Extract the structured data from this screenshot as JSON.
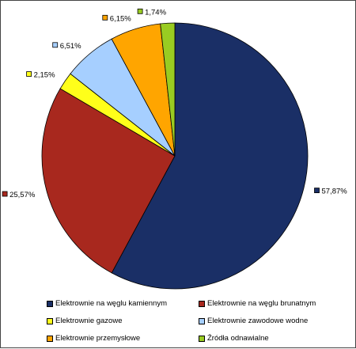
{
  "chart_data": {
    "type": "pie",
    "categories": [
      "Elektrownie na węglu kamiennym",
      "Elektrownie na węglu brunatnym",
      "Elektrownie gazowe",
      "Elektrownie zawodowe wodne",
      "Elektrownie przemysłowe",
      "Źródła odnawialne"
    ],
    "values": [
      57.87,
      25.57,
      2.15,
      6.51,
      6.15,
      1.74
    ],
    "data_labels": [
      "57,87%",
      "25,57%",
      "2,15%",
      "6,51%",
      "6,15%",
      "1,74%"
    ],
    "colors": [
      "#1a2f66",
      "#a8281e",
      "#ffff1a",
      "#a6cfff",
      "#ffa500",
      "#99cc22"
    ],
    "start_angle_deg": 0,
    "direction": "clockwise",
    "legend_position": "bottom"
  }
}
